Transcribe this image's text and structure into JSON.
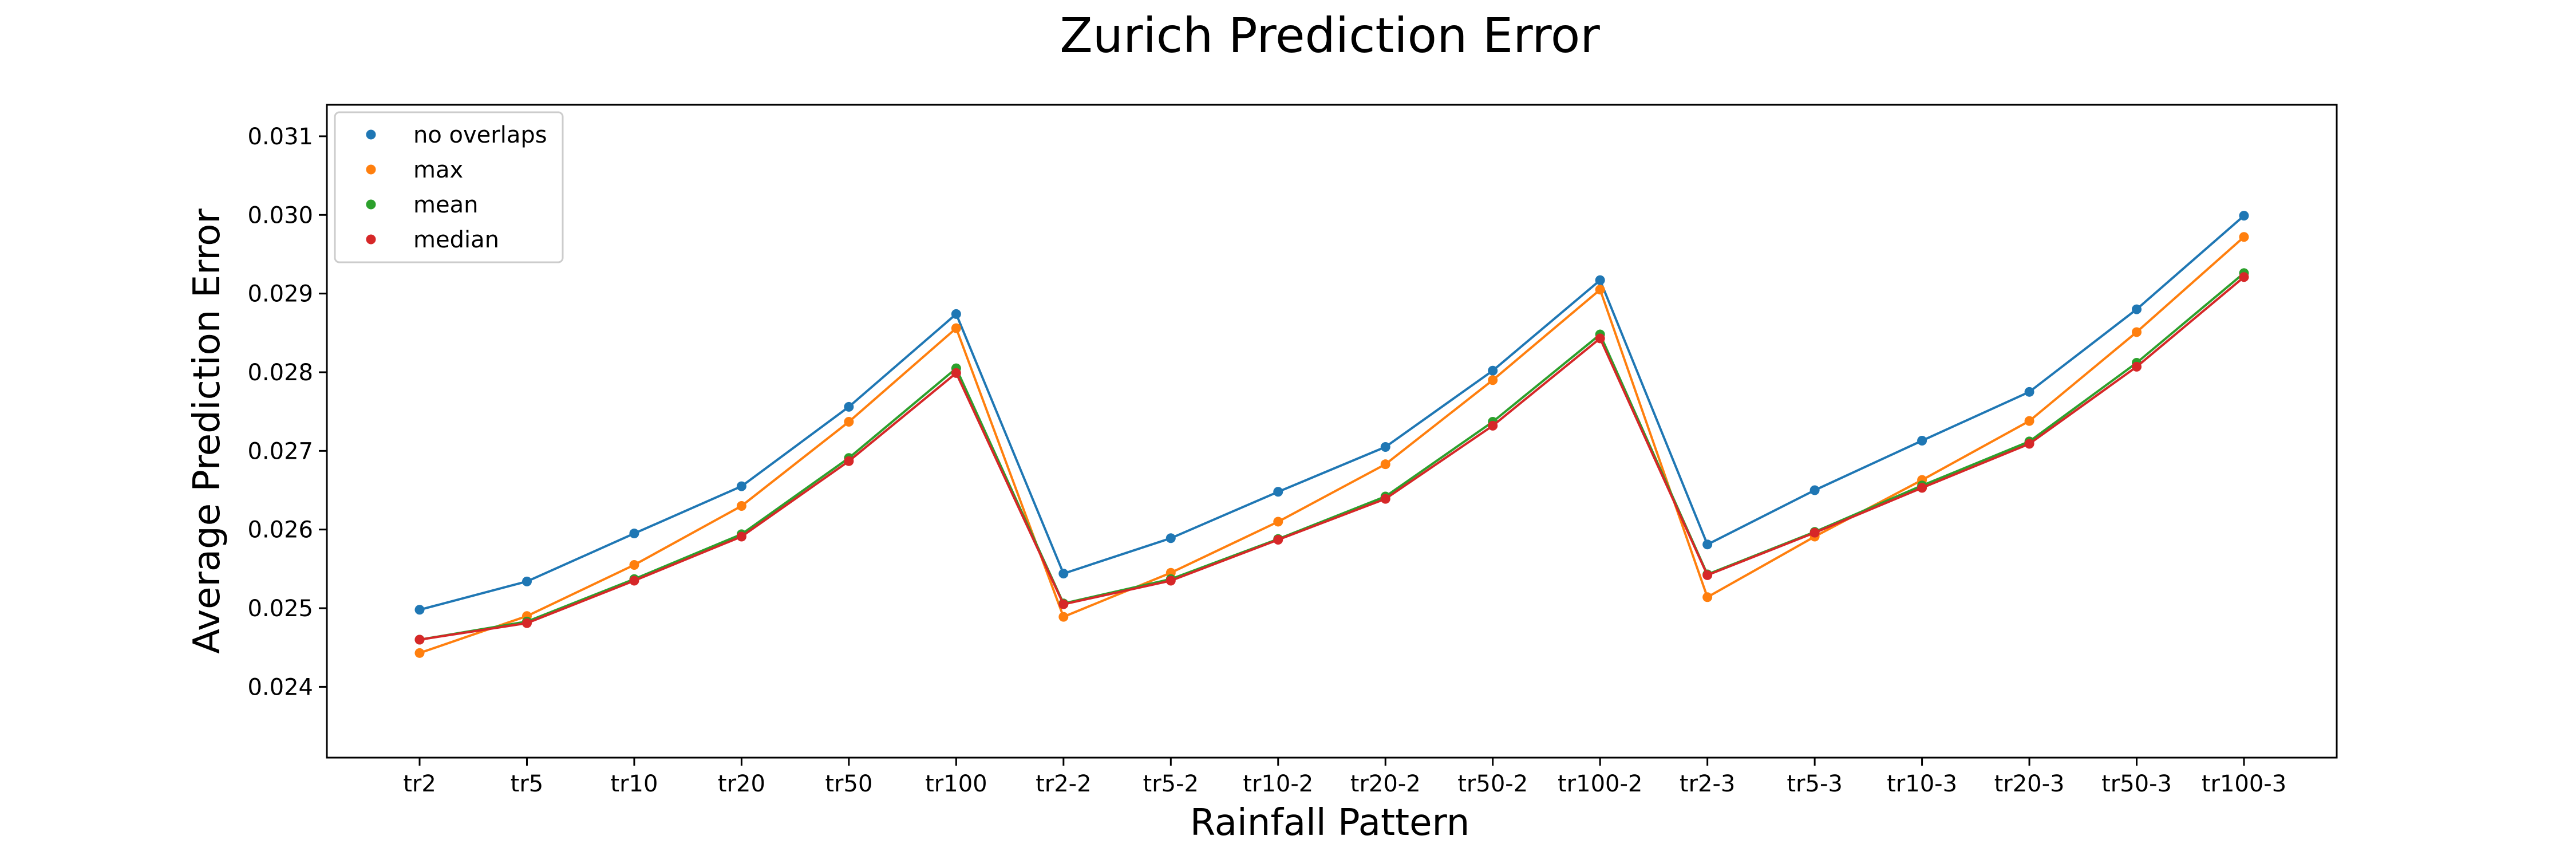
{
  "chart_data": {
    "type": "line",
    "title": "Zurich Prediction Error",
    "xlabel": "Rainfall Pattern",
    "ylabel": "Average Prediction Error",
    "categories": [
      "tr2",
      "tr5",
      "tr10",
      "tr20",
      "tr50",
      "tr100",
      "tr2-2",
      "tr5-2",
      "tr10-2",
      "tr20-2",
      "tr50-2",
      "tr100-2",
      "tr2-3",
      "tr5-3",
      "tr10-3",
      "tr20-3",
      "tr50-3",
      "tr100-3"
    ],
    "ylim": [
      0.0231,
      0.0314
    ],
    "yticks": [
      "0.024",
      "0.025",
      "0.026",
      "0.027",
      "0.028",
      "0.029",
      "0.030",
      "0.031"
    ],
    "grid": false,
    "legend_position": "top-left",
    "series": [
      {
        "name": "no overlaps",
        "color": "#1f77b4",
        "values": [
          0.02498,
          0.02534,
          0.02595,
          0.02655,
          0.02756,
          0.02874,
          0.02544,
          0.02589,
          0.02648,
          0.02705,
          0.02802,
          0.02917,
          0.02581,
          0.0265,
          0.02713,
          0.02775,
          0.0288,
          0.02999
        ]
      },
      {
        "name": "max",
        "color": "#ff7f0e",
        "values": [
          0.02443,
          0.0249,
          0.02555,
          0.0263,
          0.02737,
          0.02856,
          0.02489,
          0.02545,
          0.0261,
          0.02683,
          0.0279,
          0.02905,
          0.02514,
          0.02591,
          0.02663,
          0.02738,
          0.02851,
          0.02972
        ]
      },
      {
        "name": "mean",
        "color": "#2ca02c",
        "values": [
          0.0246,
          0.02483,
          0.02537,
          0.02594,
          0.02691,
          0.02805,
          0.02506,
          0.02537,
          0.02588,
          0.02642,
          0.02737,
          0.02848,
          0.02543,
          0.02597,
          0.02656,
          0.02712,
          0.02812,
          0.02926
        ]
      },
      {
        "name": "median",
        "color": "#d62728",
        "values": [
          0.0246,
          0.02481,
          0.02535,
          0.02591,
          0.02687,
          0.02799,
          0.02505,
          0.02535,
          0.02587,
          0.02639,
          0.02732,
          0.02843,
          0.02542,
          0.02596,
          0.02653,
          0.02709,
          0.02807,
          0.02921
        ]
      }
    ]
  }
}
